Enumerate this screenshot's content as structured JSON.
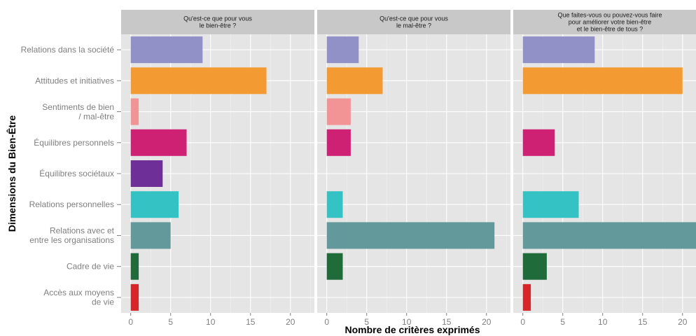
{
  "chart_data": {
    "type": "bar",
    "orientation": "horizontal",
    "xlabel": "Nombre de critères exprimés",
    "ylabel": "Dimensions du Bien-Être",
    "xlim": [
      -1.2,
      23
    ],
    "x_ticks": [
      0,
      5,
      10,
      15,
      20
    ],
    "categories": [
      "Relations dans la société",
      "Attitudes et initiatives",
      "Sentiments de bien\n/ mal-être",
      "Équilibres personnels",
      "Équilibres sociétaux",
      "Relations personnelles",
      "Relations avec et\nentre les organisations",
      "Cadre de vie",
      "Accès aux moyens\nde vie"
    ],
    "colors": [
      "#9191c8",
      "#f39a32",
      "#f29496",
      "#cf2173",
      "#6e2f98",
      "#35c2c5",
      "#64999c",
      "#1f6b3a",
      "#d7252a"
    ],
    "grid": true,
    "panels": [
      {
        "title": "Qu'est-ce que pour vous\nle bien-être ?",
        "values": [
          9,
          17,
          1,
          7,
          4,
          6,
          5,
          1,
          1
        ]
      },
      {
        "title": "Qu'est-ce que pour vous\nle mal-être ?",
        "values": [
          4,
          7,
          3,
          3,
          0,
          2,
          21,
          2,
          0
        ]
      },
      {
        "title": "Que faites-vous ou pouvez-vous faire\npour améliorer votre bien-être\net le bien-être de tous ?",
        "values": [
          9,
          20,
          0,
          4,
          0,
          7,
          23,
          3,
          1
        ]
      }
    ]
  }
}
